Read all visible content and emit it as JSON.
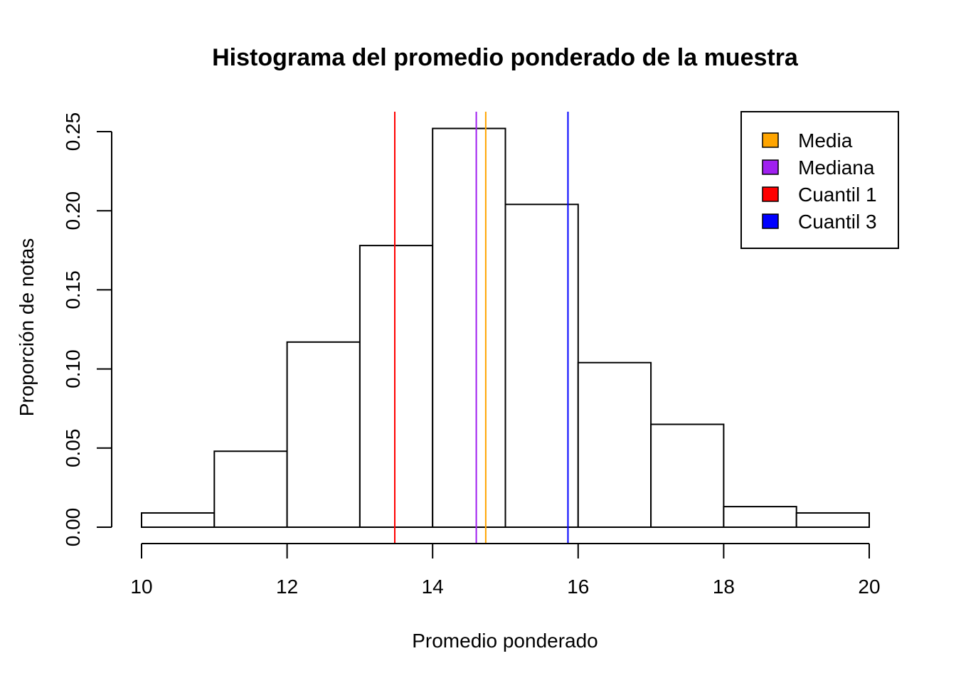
{
  "chart_data": {
    "type": "bar",
    "title": "Histograma del promedio ponderado de la muestra",
    "xlabel": "Promedio ponderado",
    "ylabel": "Proporción de notas",
    "xlim": [
      10,
      20
    ],
    "ylim": [
      0,
      0.25
    ],
    "bins": [
      {
        "from": 10,
        "to": 11,
        "value": 0.009
      },
      {
        "from": 11,
        "to": 12,
        "value": 0.048
      },
      {
        "from": 12,
        "to": 13,
        "value": 0.117
      },
      {
        "from": 13,
        "to": 14,
        "value": 0.178
      },
      {
        "from": 14,
        "to": 15,
        "value": 0.252
      },
      {
        "from": 15,
        "to": 16,
        "value": 0.204
      },
      {
        "from": 16,
        "to": 17,
        "value": 0.104
      },
      {
        "from": 17,
        "to": 18,
        "value": 0.065
      },
      {
        "from": 18,
        "to": 19,
        "value": 0.013
      },
      {
        "from": 19,
        "to": 20,
        "value": 0.009
      }
    ],
    "x_ticks": [
      10,
      12,
      14,
      16,
      18,
      20
    ],
    "x_tick_labels": [
      "10",
      "12",
      "14",
      "16",
      "18",
      "20"
    ],
    "y_ticks": [
      0,
      0.05,
      0.1,
      0.15,
      0.2,
      0.25
    ],
    "y_tick_labels": [
      "0.00",
      "0.05",
      "0.10",
      "0.15",
      "0.20",
      "0.25"
    ],
    "reference_lines": [
      {
        "name": "Media",
        "x": 14.73,
        "color": "#FFA500"
      },
      {
        "name": "Mediana",
        "x": 14.6,
        "color": "#A020F0"
      },
      {
        "name": "Cuantil 1",
        "x": 13.48,
        "color": "#FF0000"
      },
      {
        "name": "Cuantil 3",
        "x": 15.86,
        "color": "#0000FF"
      }
    ],
    "legend": {
      "position": "top-right",
      "entries": [
        {
          "label": "Media",
          "color": "#FFA500"
        },
        {
          "label": "Mediana",
          "color": "#A020F0"
        },
        {
          "label": "Cuantil 1",
          "color": "#FF0000"
        },
        {
          "label": "Cuantil 3",
          "color": "#0000FF"
        }
      ]
    },
    "grid": false
  }
}
